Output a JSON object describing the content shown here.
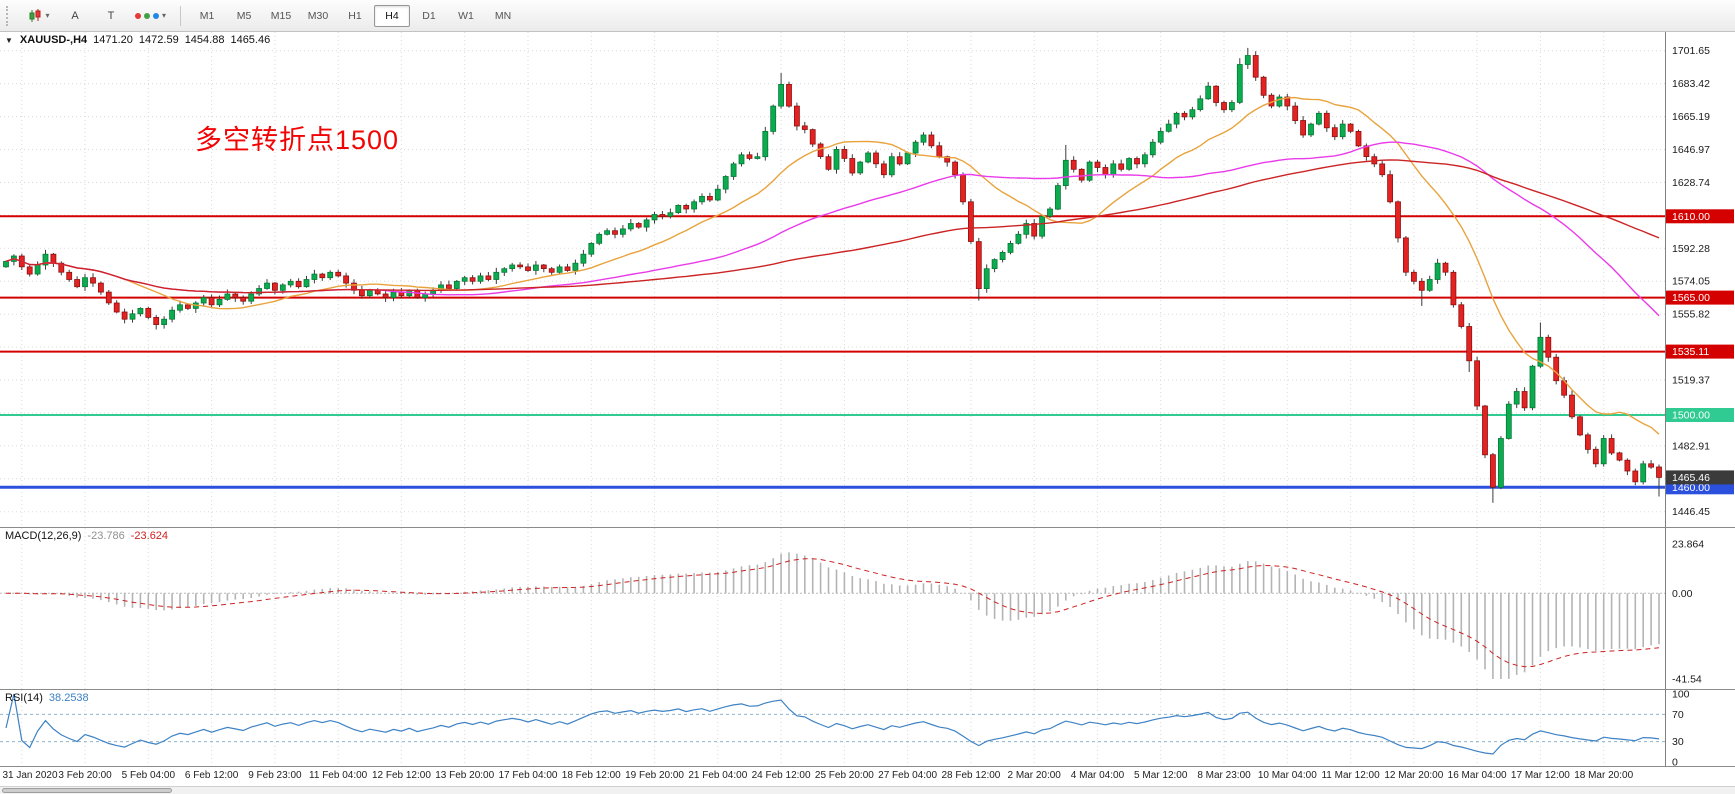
{
  "toolbar": {
    "left_buttons": [
      {
        "name": "chart-type-candles-button",
        "type": "candles"
      },
      {
        "name": "annotate-a-button",
        "label": "A"
      },
      {
        "name": "text-tool-button",
        "label": "T"
      },
      {
        "name": "colors-dropdown-button",
        "type": "palette"
      }
    ],
    "timeframes": [
      "M1",
      "M5",
      "M15",
      "M30",
      "H1",
      "H4",
      "D1",
      "W1",
      "MN"
    ],
    "active_timeframe": "H4"
  },
  "chart": {
    "title": {
      "symbol": "XAUUSD-,H4",
      "open": "1471.20",
      "high": "1472.59",
      "low": "1454.88",
      "close": "1465.46"
    },
    "annotation": {
      "text": "多空转折点1500",
      "color": "#f20404"
    }
  },
  "macd": {
    "label": "MACD(12,26,9)",
    "value1": "-23.786",
    "value2": "-23.624"
  },
  "rsi": {
    "label": "RSI(14)",
    "value": "38.2538"
  },
  "chart_data": {
    "type": "candlestick",
    "symbol": "XAUUSD-",
    "timeframe": "H4",
    "colors": {
      "bull": "#0cab50",
      "bear": "#e32222",
      "wick": "#3c3c3c",
      "grid": "#dadada",
      "current_badge": "#3b3b3b",
      "macd_hist": "#b4b4b4",
      "macd_signal": "#cc2222",
      "rsi_line": "#3e82c4",
      "rsi_level": "#8fb2cc",
      "axis_text": "#1a1a1a"
    },
    "closes": [
      1585,
      1588,
      1582,
      1578,
      1583,
      1589,
      1584,
      1579,
      1575,
      1571,
      1576,
      1573,
      1568,
      1562,
      1557,
      1553,
      1556,
      1559,
      1554,
      1550,
      1553,
      1558,
      1561,
      1559,
      1562,
      1565,
      1561,
      1564,
      1567,
      1565,
      1563,
      1567,
      1570,
      1573,
      1569,
      1572,
      1574,
      1571,
      1575,
      1578,
      1576,
      1579,
      1577,
      1573,
      1569,
      1566,
      1569,
      1567,
      1565,
      1568,
      1566,
      1569,
      1565,
      1567,
      1569,
      1572,
      1570,
      1574,
      1576,
      1574,
      1577,
      1575,
      1579,
      1581,
      1583,
      1582,
      1580,
      1583,
      1581,
      1579,
      1582,
      1580,
      1584,
      1589,
      1595,
      1600,
      1602,
      1600,
      1603,
      1606,
      1604,
      1608,
      1611,
      1610,
      1612,
      1616,
      1614,
      1618,
      1621,
      1619,
      1625,
      1632,
      1639,
      1644,
      1642,
      1643,
      1657,
      1671,
      1683,
      1671,
      1660,
      1658,
      1650,
      1643,
      1636,
      1647,
      1642,
      1634,
      1640,
      1645,
      1639,
      1633,
      1643,
      1639,
      1645,
      1651,
      1655,
      1649,
      1643,
      1640,
      1633,
      1618,
      1596,
      1570,
      1581,
      1586,
      1590,
      1595,
      1600,
      1606,
      1599,
      1610,
      1614,
      1627,
      1641,
      1636,
      1630,
      1640,
      1637,
      1633,
      1639,
      1636,
      1642,
      1639,
      1644,
      1651,
      1657,
      1661,
      1667,
      1665,
      1669,
      1675,
      1682,
      1673,
      1669,
      1673,
      1694,
      1699,
      1687,
      1677,
      1671,
      1676,
      1671,
      1663,
      1655,
      1661,
      1667,
      1659,
      1654,
      1661,
      1657,
      1649,
      1643,
      1639,
      1633,
      1618,
      1598,
      1579,
      1574,
      1569,
      1575,
      1584,
      1579,
      1561,
      1549,
      1530,
      1505,
      1478,
      1460,
      1487,
      1506,
      1513,
      1504,
      1527,
      1543,
      1532,
      1519,
      1511,
      1499,
      1489,
      1481,
      1473,
      1487,
      1479,
      1475,
      1469,
      1463,
      1473,
      1471.2,
      1465.46
    ],
    "wick_high_overrides": {
      "98": 1689.3,
      "134": 1649.5,
      "156": 1697.5,
      "157": 1703.2,
      "194": 1551.2,
      "209": 1472.59
    },
    "wick_low_overrides": {
      "19": 1547.3,
      "123": 1563.3,
      "179": 1560.4,
      "185": 1523.8,
      "188": 1451.4,
      "209": 1454.88
    },
    "moving_averages": [
      {
        "name": "ma-fast",
        "period": 16,
        "color": "#e8a33d"
      },
      {
        "name": "ma-mid",
        "period": 48,
        "color": "#ea3bea"
      },
      {
        "name": "ma-slow",
        "period": 96,
        "color": "#cc2424"
      }
    ],
    "y_axis": {
      "gridlines": [
        1446.45,
        1464.68,
        1482.91,
        1501.14,
        1519.37,
        1537.59,
        1555.82,
        1574.05,
        1592.28,
        1610.51,
        1628.74,
        1646.97,
        1665.19,
        1683.42,
        1701.65
      ],
      "labels": [
        {
          "price": 1701.65,
          "text": "1701.65"
        },
        {
          "price": 1683.42,
          "text": "1683.42"
        },
        {
          "price": 1665.19,
          "text": "1665.19"
        },
        {
          "price": 1646.97,
          "text": "1646.97"
        },
        {
          "price": 1628.74,
          "text": "1628.74"
        },
        {
          "price": 1592.28,
          "text": "1592.28"
        },
        {
          "price": 1574.05,
          "text": "1574.05"
        },
        {
          "price": 1555.82,
          "text": "1555.82"
        },
        {
          "price": 1519.37,
          "text": "1519.37"
        },
        {
          "price": 1482.91,
          "text": "1482.91"
        },
        {
          "price": 1446.45,
          "text": "1446.45"
        }
      ]
    },
    "hlines": [
      {
        "price": 1610.0,
        "text": "1610.00",
        "color": "#d40000",
        "width": 2
      },
      {
        "price": 1565.0,
        "text": "1565.00",
        "color": "#d40000",
        "width": 2
      },
      {
        "price": 1535.11,
        "text": "1535.11",
        "color": "#d40000",
        "width": 2
      },
      {
        "price": 1500.0,
        "text": "1500.00",
        "color": "#2fcb93",
        "width": 2
      },
      {
        "price": 1460.0,
        "text": "1460.00",
        "color": "#2b50dd",
        "width": 3
      }
    ],
    "current_price": {
      "value": 1465.46,
      "text": "1465.46"
    },
    "macd": {
      "fast": 12,
      "slow": 26,
      "signal_period": 9,
      "max": 23.864,
      "min": -41.54,
      "axis_labels": [
        {
          "value": 23.864,
          "text": "23.864"
        },
        {
          "value": 0,
          "text": "0.00"
        },
        {
          "value": -41.54,
          "text": "-41.54"
        }
      ]
    },
    "rsi": {
      "period": 14,
      "levels": [
        {
          "value": 100,
          "text": "100",
          "dashed": false
        },
        {
          "value": 70,
          "text": "70",
          "dashed": true
        },
        {
          "value": 30,
          "text": "30",
          "dashed": true
        },
        {
          "value": 0,
          "text": "0",
          "dashed": false
        }
      ]
    },
    "x_labels": [
      "31 Jan 2020",
      "3 Feb 20:00",
      "5 Feb 04:00",
      "6 Feb 12:00",
      "9 Feb 23:00",
      "11 Feb 04:00",
      "12 Feb 12:00",
      "13 Feb 20:00",
      "17 Feb 04:00",
      "18 Feb 12:00",
      "19 Feb 20:00",
      "21 Feb 04:00",
      "24 Feb 12:00",
      "25 Feb 20:00",
      "27 Feb 04:00",
      "28 Feb 12:00",
      "2 Mar 20:00",
      "4 Mar 04:00",
      "5 Mar 12:00",
      "8 Mar 23:00",
      "10 Mar 04:00",
      "11 Mar 12:00",
      "12 Mar 20:00",
      "16 Mar 04:00",
      "17 Mar 12:00",
      "18 Mar 20:00"
    ]
  }
}
